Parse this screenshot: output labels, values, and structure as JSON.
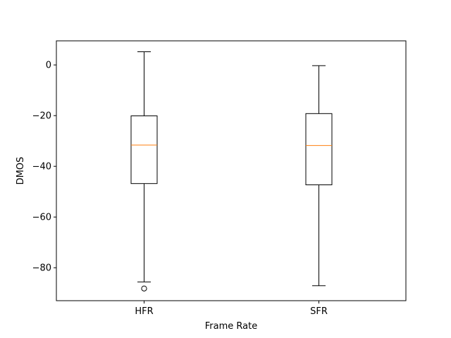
{
  "chart_data": {
    "type": "boxplot",
    "title": "",
    "xlabel": "Frame Rate",
    "ylabel": "DMOS",
    "categories": [
      "HFR",
      "SFR"
    ],
    "ylim": [
      -93,
      9.5
    ],
    "yticks": [
      0,
      -20,
      -40,
      -60,
      -80
    ],
    "ytick_labels": [
      "0",
      "−20",
      "−40",
      "−60",
      "−80"
    ],
    "grid": false,
    "series": [
      {
        "whisker_high": 5.2,
        "q3": -20.1,
        "median": -31.6,
        "q1": -46.8,
        "whisker_low": -85.6,
        "outliers": [
          -88.2
        ]
      },
      {
        "whisker_high": -0.3,
        "q3": -19.2,
        "median": -31.8,
        "q1": -47.3,
        "whisker_low": -87.1,
        "outliers": []
      }
    ],
    "colors": {
      "box": "#000000",
      "median": "#ff7f0e",
      "axes": "#000000"
    }
  }
}
